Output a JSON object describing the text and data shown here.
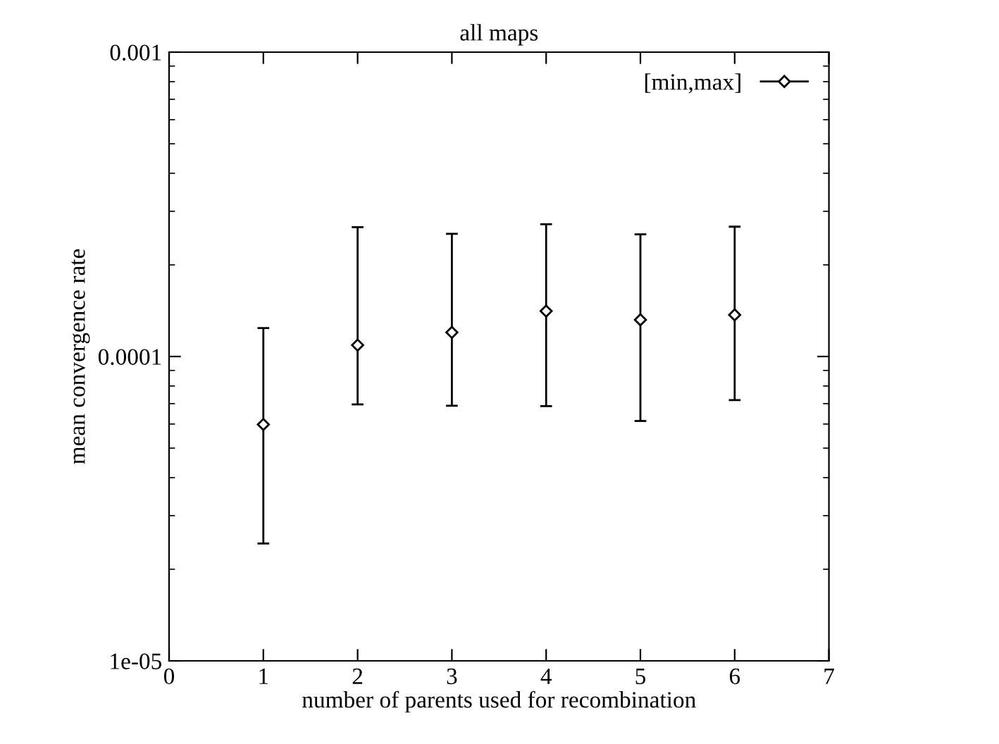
{
  "chart_data": {
    "type": "scatter",
    "title": "all maps",
    "xlabel": "number of parents used for recombination",
    "ylabel": "mean convergence rate",
    "x": [
      1,
      2,
      3,
      4,
      5,
      6
    ],
    "series": [
      {
        "name": "[min,max]",
        "color": "#000000",
        "values": [
          5.98e-05,
          0.000109,
          0.00012,
          0.000141,
          0.000132,
          0.000137
        ],
        "errors": [
          [
            2.43e-05,
            0.000124
          ],
          [
            6.96e-05,
            0.000266
          ],
          [
            6.89e-05,
            0.000253
          ],
          [
            6.87e-05,
            0.000272
          ],
          [
            6.14e-05,
            0.000252
          ],
          [
            7.19e-05,
            0.000267
          ]
        ]
      }
    ],
    "xlim": [
      0,
      7
    ],
    "xticks": [
      0,
      1,
      2,
      3,
      4,
      5,
      6,
      7
    ],
    "ylim": [
      1e-05,
      0.001
    ],
    "yticks": [
      {
        "value": 1e-05,
        "label": "1e-05"
      },
      {
        "value": 0.0001,
        "label": "0.0001"
      },
      {
        "value": 0.001,
        "label": "0.001"
      }
    ],
    "log": "y",
    "marker": "diamond",
    "legend": "top right",
    "grid": false
  }
}
